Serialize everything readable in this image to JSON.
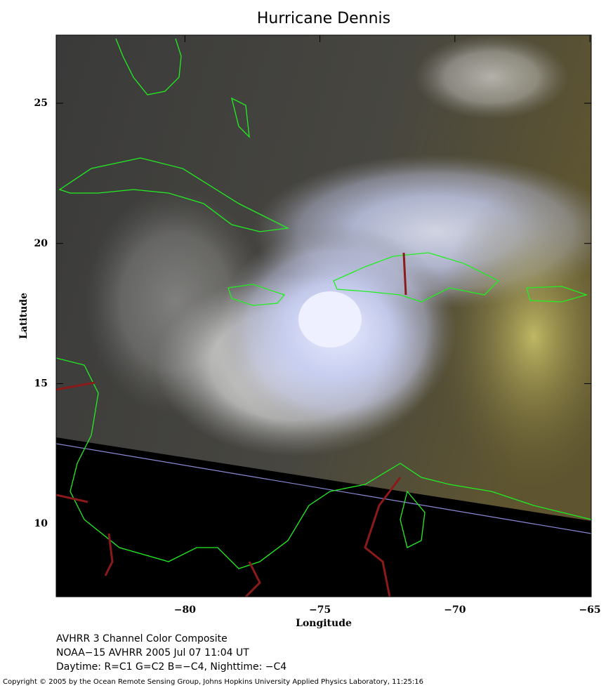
{
  "title": "Hurricane Dennis",
  "map": {
    "xlabel": "Longitude",
    "ylabel": "Latitude",
    "xlim": [
      -84.77,
      -64.95
    ],
    "ylim": [
      7.4,
      27.43
    ],
    "xticks": [
      {
        "value": -80,
        "label": "−80"
      },
      {
        "value": -75,
        "label": "−75"
      },
      {
        "value": -70,
        "label": "−70"
      },
      {
        "value": -65,
        "label": "−65"
      }
    ],
    "yticks": [
      10,
      15,
      20,
      25
    ]
  },
  "caption": [
    "AVHRR 3 Channel Color Composite",
    "NOAA−15 AVHRR 2005 Jul 07 11:04 UT",
    "Daytime: R=C1 G=C2 B=−C4, Nighttime: −C4"
  ],
  "copyright": "Copyright © 2005 by the Ocean Remote Sensing Group, Johns Hopkins University Applied Physics Laboratory, 11:25:16"
}
